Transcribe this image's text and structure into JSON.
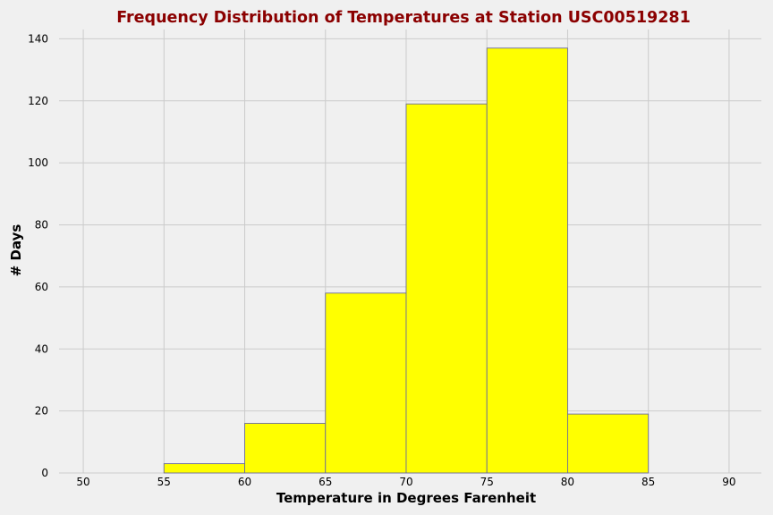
{
  "chart_data": {
    "type": "bar",
    "title": "Frequency Distribution of Temperatures at Station USC00519281",
    "xlabel": "Temperature in Degrees Farenheit",
    "ylabel": "# Days",
    "xlim": [
      48.5,
      92
    ],
    "ylim": [
      0,
      143
    ],
    "xticks": [
      50,
      55,
      60,
      65,
      70,
      75,
      80,
      85,
      90
    ],
    "yticks": [
      0,
      20,
      40,
      60,
      80,
      100,
      120,
      140
    ],
    "grid": true,
    "bins": [
      {
        "start": 55,
        "end": 60,
        "count": 3
      },
      {
        "start": 60,
        "end": 65,
        "count": 16
      },
      {
        "start": 65,
        "end": 70,
        "count": 58
      },
      {
        "start": 70,
        "end": 75,
        "count": 119
      },
      {
        "start": 75,
        "end": 80,
        "count": 137
      },
      {
        "start": 80,
        "end": 85,
        "count": 19
      }
    ],
    "bar_color": "#ffff00",
    "bar_edge_color": "#6b6b9a"
  }
}
